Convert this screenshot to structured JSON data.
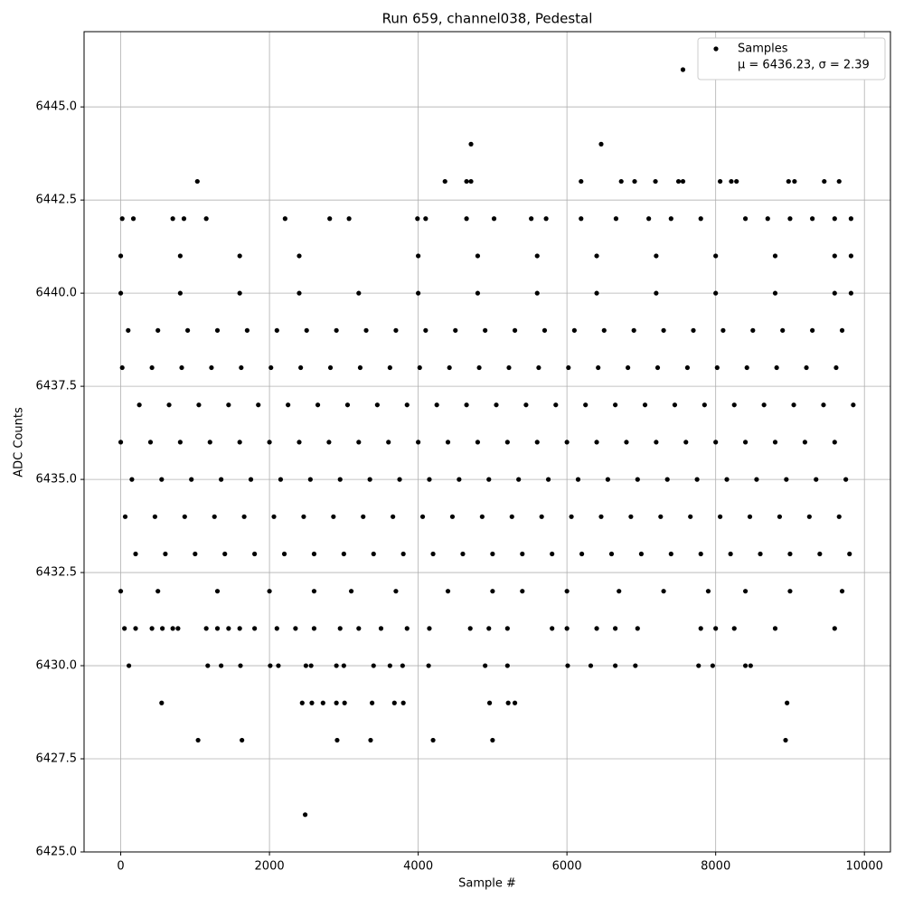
{
  "chart_data": {
    "type": "scatter",
    "title": "Run 659, channel038, Pedestal",
    "x_label": "Sample #",
    "y_label": "ADC Counts",
    "xlim": [
      -493,
      10350
    ],
    "ylim": [
      6425,
      6447.02
    ],
    "xticks": [
      0,
      2000,
      4000,
      6000,
      8000,
      10000
    ],
    "yticks": [
      {
        "value": 6425,
        "label": "6425.0"
      },
      {
        "value": 6427.5,
        "label": "6427.5"
      },
      {
        "value": 6430,
        "label": "6430.0"
      },
      {
        "value": 6432.5,
        "label": "6432.5"
      },
      {
        "value": 6435,
        "label": "6435.0"
      },
      {
        "value": 6437.5,
        "label": "6437.5"
      },
      {
        "value": 6440,
        "label": "6440.0"
      },
      {
        "value": 6442.5,
        "label": "6442.5"
      },
      {
        "value": 6445,
        "label": "6445.0"
      }
    ],
    "grid": true,
    "legend": "upper right",
    "annotation": "μ = 6436.23, σ = 2.39",
    "series": [
      {
        "name": "Samples",
        "color": "#000000",
        "x": [
          100,
          500,
          900,
          1300,
          1700,
          2100,
          2500,
          2900,
          3300,
          3700,
          4100,
          4500,
          4900,
          5300,
          5700,
          6100,
          6500,
          6900,
          7300,
          7700,
          8100,
          8500,
          8900,
          9300,
          9700,
          20,
          420,
          820,
          1220,
          1620,
          2020,
          2420,
          2820,
          3220,
          3620,
          4020,
          4420,
          4820,
          5220,
          5620,
          6020,
          6420,
          6820,
          7220,
          7620,
          8020,
          8420,
          8820,
          9220,
          9620,
          250,
          650,
          1050,
          1450,
          1850,
          2250,
          2650,
          3050,
          3450,
          3850,
          4250,
          4650,
          5050,
          5450,
          5850,
          6250,
          6650,
          7050,
          7450,
          7850,
          8250,
          8650,
          9050,
          9450,
          9850,
          0,
          400,
          800,
          1200,
          1600,
          2000,
          2400,
          2800,
          3200,
          3600,
          4000,
          4400,
          4800,
          5200,
          5600,
          6000,
          6400,
          6800,
          7200,
          7600,
          8000,
          8400,
          8800,
          9200,
          9600,
          150,
          550,
          950,
          1350,
          1750,
          2150,
          2550,
          2950,
          3350,
          3750,
          4150,
          4550,
          4950,
          5350,
          5750,
          6150,
          6550,
          6950,
          7350,
          7750,
          8150,
          8550,
          8950,
          9350,
          9750,
          60,
          460,
          860,
          1260,
          1660,
          2060,
          2460,
          2860,
          3260,
          3660,
          4060,
          4460,
          4860,
          5260,
          5660,
          6060,
          6460,
          6860,
          7260,
          7660,
          8060,
          8460,
          8860,
          9260,
          9660,
          200,
          600,
          1000,
          1400,
          1800,
          2200,
          2600,
          3000,
          3400,
          3800,
          4200,
          4600,
          5000,
          5400,
          5800,
          6200,
          6600,
          7000,
          7400,
          7800,
          8200,
          8600,
          9000,
          9400,
          9800,
          0,
          800,
          1600,
          2400,
          3200,
          4000,
          4800,
          5600,
          6400,
          7200,
          8000,
          8800,
          9600,
          9820,
          0,
          800,
          1600,
          2400,
          4000,
          4800,
          5600,
          6400,
          7200,
          8000,
          8800,
          9600,
          9820,
          0,
          500,
          1300,
          2000,
          2600,
          3100,
          3700,
          4400,
          5000,
          5400,
          6000,
          6700,
          7300,
          7900,
          8400,
          9000,
          9700,
          50,
          200,
          420,
          560,
          700,
          770,
          1150,
          1300,
          1450,
          1600,
          1800,
          2100,
          2350,
          2600,
          2950,
          3200,
          3500,
          3850,
          4150,
          4700,
          4950,
          5200,
          5800,
          6000,
          6400,
          6650,
          6950,
          7800,
          8000,
          8250,
          8800,
          9600,
          20,
          170,
          700,
          850,
          1150,
          2210,
          2810,
          3070,
          3990,
          4100,
          4650,
          5020,
          5520,
          5720,
          6190,
          6660,
          7100,
          7400,
          7800,
          8400,
          8700,
          9000,
          9300,
          9600,
          9820,
          1030,
          4360,
          4650,
          4710,
          6190,
          6730,
          6910,
          7190,
          7500,
          7560,
          8060,
          8210,
          8280,
          8980,
          9060,
          9460,
          9660,
          4710,
          6460,
          7560,
          110,
          1170,
          1350,
          1610,
          2010,
          2120,
          2490,
          2560,
          2900,
          3000,
          3400,
          3620,
          3790,
          4140,
          4900,
          5200,
          6010,
          6320,
          6650,
          6920,
          7770,
          7960,
          8400,
          8470,
          550,
          2440,
          2570,
          2720,
          2900,
          3010,
          3380,
          3680,
          3800,
          4960,
          5210,
          5300,
          8960,
          1040,
          1630,
          2910,
          3360,
          4200,
          5000,
          8940,
          2480
        ],
        "values": [
          6439,
          6439,
          6439,
          6439,
          6439,
          6439,
          6439,
          6439,
          6439,
          6439,
          6439,
          6439,
          6439,
          6439,
          6439,
          6439,
          6439,
          6439,
          6439,
          6439,
          6439,
          6439,
          6439,
          6439,
          6439,
          6438,
          6438,
          6438,
          6438,
          6438,
          6438,
          6438,
          6438,
          6438,
          6438,
          6438,
          6438,
          6438,
          6438,
          6438,
          6438,
          6438,
          6438,
          6438,
          6438,
          6438,
          6438,
          6438,
          6438,
          6438,
          6437,
          6437,
          6437,
          6437,
          6437,
          6437,
          6437,
          6437,
          6437,
          6437,
          6437,
          6437,
          6437,
          6437,
          6437,
          6437,
          6437,
          6437,
          6437,
          6437,
          6437,
          6437,
          6437,
          6437,
          6437,
          6436,
          6436,
          6436,
          6436,
          6436,
          6436,
          6436,
          6436,
          6436,
          6436,
          6436,
          6436,
          6436,
          6436,
          6436,
          6436,
          6436,
          6436,
          6436,
          6436,
          6436,
          6436,
          6436,
          6436,
          6436,
          6435,
          6435,
          6435,
          6435,
          6435,
          6435,
          6435,
          6435,
          6435,
          6435,
          6435,
          6435,
          6435,
          6435,
          6435,
          6435,
          6435,
          6435,
          6435,
          6435,
          6435,
          6435,
          6435,
          6435,
          6435,
          6434,
          6434,
          6434,
          6434,
          6434,
          6434,
          6434,
          6434,
          6434,
          6434,
          6434,
          6434,
          6434,
          6434,
          6434,
          6434,
          6434,
          6434,
          6434,
          6434,
          6434,
          6434,
          6434,
          6434,
          6434,
          6433,
          6433,
          6433,
          6433,
          6433,
          6433,
          6433,
          6433,
          6433,
          6433,
          6433,
          6433,
          6433,
          6433,
          6433,
          6433,
          6433,
          6433,
          6433,
          6433,
          6433,
          6433,
          6433,
          6433,
          6433,
          6440,
          6440,
          6440,
          6440,
          6440,
          6440,
          6440,
          6440,
          6440,
          6440,
          6440,
          6440,
          6440,
          6440,
          6441,
          6441,
          6441,
          6441,
          6441,
          6441,
          6441,
          6441,
          6441,
          6441,
          6441,
          6441,
          6441,
          6432,
          6432,
          6432,
          6432,
          6432,
          6432,
          6432,
          6432,
          6432,
          6432,
          6432,
          6432,
          6432,
          6432,
          6432,
          6432,
          6432,
          6431,
          6431,
          6431,
          6431,
          6431,
          6431,
          6431,
          6431,
          6431,
          6431,
          6431,
          6431,
          6431,
          6431,
          6431,
          6431,
          6431,
          6431,
          6431,
          6431,
          6431,
          6431,
          6431,
          6431,
          6431,
          6431,
          6431,
          6431,
          6431,
          6431,
          6431,
          6431,
          6442,
          6442,
          6442,
          6442,
          6442,
          6442,
          6442,
          6442,
          6442,
          6442,
          6442,
          6442,
          6442,
          6442,
          6442,
          6442,
          6442,
          6442,
          6442,
          6442,
          6442,
          6442,
          6442,
          6442,
          6442,
          6443,
          6443,
          6443,
          6443,
          6443,
          6443,
          6443,
          6443,
          6443,
          6443,
          6443,
          6443,
          6443,
          6443,
          6443,
          6443,
          6443,
          6444,
          6444,
          6446,
          6430,
          6430,
          6430,
          6430,
          6430,
          6430,
          6430,
          6430,
          6430,
          6430,
          6430,
          6430,
          6430,
          6430,
          6430,
          6430,
          6430,
          6430,
          6430,
          6430,
          6430,
          6430,
          6430,
          6430,
          6429,
          6429,
          6429,
          6429,
          6429,
          6429,
          6429,
          6429,
          6429,
          6429,
          6429,
          6429,
          6429,
          6428,
          6428,
          6428,
          6428,
          6428,
          6428,
          6428,
          6426
        ]
      }
    ]
  }
}
